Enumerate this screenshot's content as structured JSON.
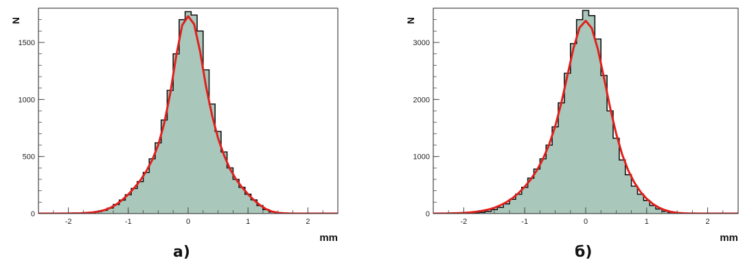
{
  "colors": {
    "fill": "#a9c7bb",
    "hist_line": "#111111",
    "fit_line": "#e0201c",
    "frame": "#444444"
  },
  "chart_data": [
    {
      "type": "area",
      "panel_label": "а)",
      "xlabel": "mm",
      "ylabel": "N",
      "xlim": [
        -2.5,
        2.5
      ],
      "ylim": [
        0,
        1800
      ],
      "xticks": [
        -2,
        -1,
        0,
        1,
        2
      ],
      "xtick_labels": [
        "-2",
        "-1",
        "0",
        "1",
        "2"
      ],
      "yticks": [
        0,
        500,
        1000,
        1500
      ],
      "ytick_labels": [
        "0",
        "500",
        "1000",
        "1500"
      ],
      "grid": false,
      "x": [
        -2.5,
        -2.4,
        -2.3,
        -2.2,
        -2.1,
        -2.0,
        -1.9,
        -1.8,
        -1.7,
        -1.6,
        -1.5,
        -1.4,
        -1.3,
        -1.2,
        -1.1,
        -1.0,
        -0.9,
        -0.8,
        -0.7,
        -0.6,
        -0.5,
        -0.4,
        -0.3,
        -0.2,
        -0.1,
        0.0,
        0.1,
        0.2,
        0.3,
        0.4,
        0.5,
        0.6,
        0.7,
        0.8,
        0.9,
        1.0,
        1.1,
        1.2,
        1.3,
        1.4,
        1.5,
        1.6,
        1.7,
        1.8,
        1.9,
        2.0,
        2.1,
        2.2,
        2.3,
        2.4,
        2.5
      ],
      "series": [
        {
          "role": "histogram",
          "values": [
            0,
            0,
            0,
            0,
            0,
            0,
            0,
            2,
            4,
            8,
            16,
            28,
            48,
            80,
            118,
            165,
            220,
            280,
            360,
            480,
            620,
            820,
            1080,
            1400,
            1700,
            1770,
            1740,
            1600,
            1260,
            960,
            720,
            540,
            400,
            300,
            230,
            170,
            120,
            70,
            35,
            14,
            5,
            2,
            1,
            0,
            0,
            0,
            0,
            0,
            0,
            0,
            0
          ]
        },
        {
          "role": "fit",
          "values": [
            0,
            0,
            0,
            0,
            1,
            1,
            2,
            3,
            6,
            10,
            18,
            30,
            50,
            80,
            120,
            168,
            225,
            290,
            370,
            470,
            600,
            790,
            1050,
            1380,
            1650,
            1730,
            1660,
            1420,
            1110,
            860,
            660,
            510,
            390,
            300,
            230,
            170,
            118,
            74,
            40,
            18,
            7,
            3,
            1,
            0,
            0,
            0,
            0,
            0,
            0,
            0,
            0
          ]
        }
      ]
    },
    {
      "type": "area",
      "panel_label": "б)",
      "xlabel": "mm",
      "ylabel": "N",
      "xlim": [
        -2.5,
        2.5
      ],
      "ylim": [
        0,
        3600
      ],
      "xticks": [
        -2,
        -1,
        0,
        1,
        2
      ],
      "xtick_labels": [
        "-2",
        "-1",
        "0",
        "1",
        "2"
      ],
      "yticks": [
        0,
        1000,
        2000,
        3000
      ],
      "ytick_labels": [
        "0",
        "1000",
        "2000",
        "3000"
      ],
      "grid": false,
      "x": [
        -2.5,
        -2.4,
        -2.3,
        -2.2,
        -2.1,
        -2.0,
        -1.9,
        -1.8,
        -1.7,
        -1.6,
        -1.5,
        -1.4,
        -1.3,
        -1.2,
        -1.1,
        -1.0,
        -0.9,
        -0.8,
        -0.7,
        -0.6,
        -0.5,
        -0.4,
        -0.3,
        -0.2,
        -0.1,
        0.0,
        0.1,
        0.2,
        0.3,
        0.4,
        0.5,
        0.6,
        0.7,
        0.8,
        0.9,
        1.0,
        1.1,
        1.2,
        1.3,
        1.4,
        1.5,
        1.6,
        1.7,
        1.8,
        1.9,
        2.0,
        2.1,
        2.2,
        2.3,
        2.4,
        2.5
      ],
      "series": [
        {
          "role": "histogram",
          "values": [
            0,
            0,
            0,
            0,
            0,
            2,
            6,
            12,
            22,
            40,
            70,
            110,
            170,
            250,
            340,
            460,
            620,
            780,
            960,
            1200,
            1520,
            1940,
            2460,
            2980,
            3400,
            3560,
            3470,
            3060,
            2420,
            1800,
            1320,
            940,
            680,
            480,
            340,
            230,
            140,
            80,
            40,
            18,
            8,
            3,
            1,
            0,
            0,
            0,
            0,
            0,
            0,
            0,
            0
          ]
        },
        {
          "role": "fit",
          "values": [
            0,
            1,
            2,
            4,
            7,
            12,
            20,
            32,
            48,
            70,
            100,
            145,
            200,
            270,
            360,
            470,
            600,
            760,
            960,
            1210,
            1530,
            1940,
            2420,
            2900,
            3260,
            3380,
            3250,
            2880,
            2380,
            1860,
            1400,
            1030,
            750,
            540,
            380,
            260,
            170,
            105,
            60,
            30,
            14,
            6,
            2,
            1,
            0,
            0,
            0,
            0,
            0,
            0,
            0
          ]
        }
      ]
    }
  ]
}
